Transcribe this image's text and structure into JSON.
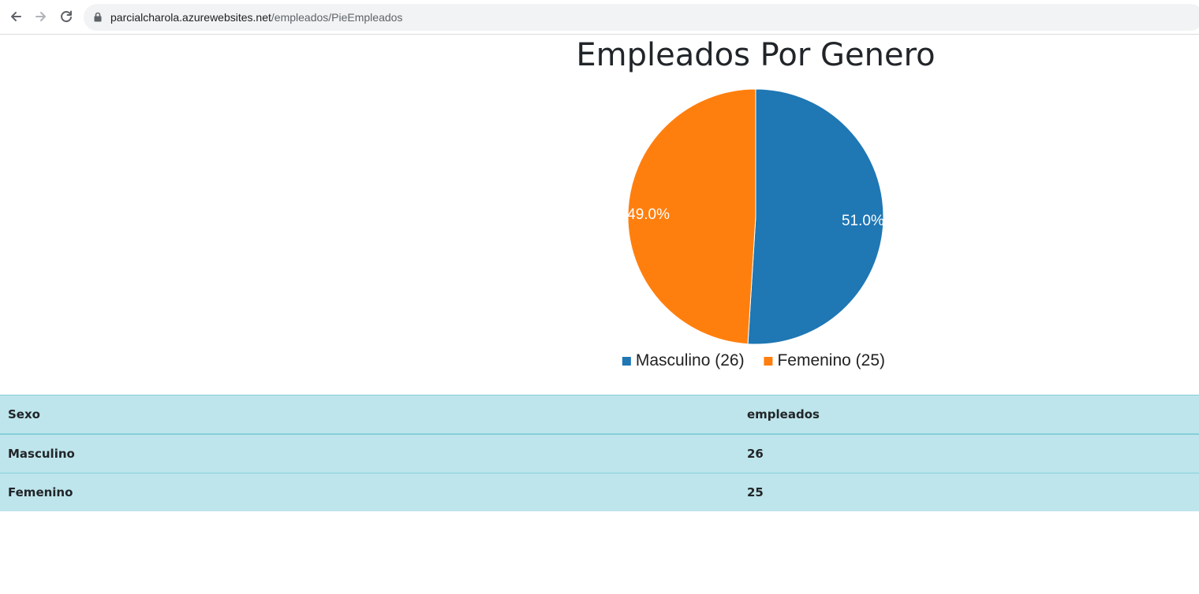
{
  "browser": {
    "url_host": "parcialcharola.azurewebsites.net",
    "url_path": "/empleados/PieEmpleados"
  },
  "chart_data": {
    "type": "pie",
    "title": "Empleados Por Genero",
    "categories": [
      "Masculino",
      "Femenino"
    ],
    "values": [
      26,
      25
    ],
    "percent_labels": [
      "51.0%",
      "49.0%"
    ],
    "legend_labels": [
      "Masculino (26)",
      "Femenino (25)"
    ],
    "colors": [
      "#1f77b4",
      "#ff7f0e"
    ],
    "legend_placement": "bottom"
  },
  "table": {
    "headers": [
      "Sexo",
      "empleados"
    ],
    "rows": [
      [
        "Masculino",
        "26"
      ],
      [
        "Femenino",
        "25"
      ]
    ],
    "background": "#bee5eb"
  }
}
